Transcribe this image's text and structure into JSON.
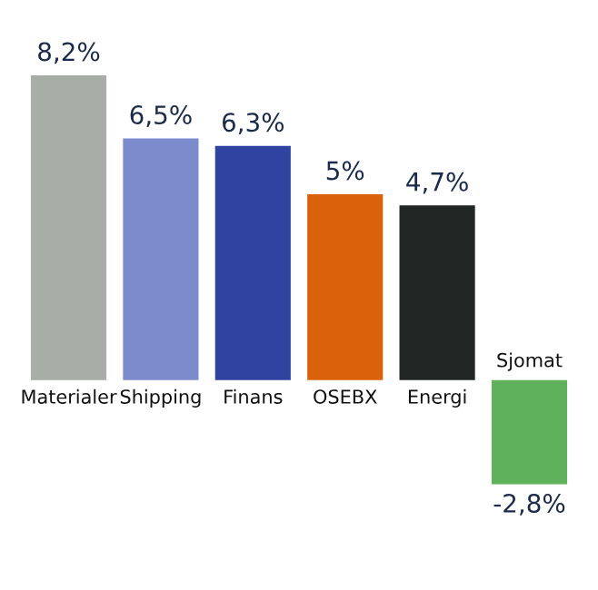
{
  "chart_data": {
    "type": "bar",
    "categories": [
      "Materialer",
      "Shipping",
      "Finans",
      "OSEBX",
      "Energi",
      "Sjomat"
    ],
    "values": [
      8.2,
      6.5,
      6.3,
      5,
      4.7,
      -2.8
    ],
    "colors": [
      "#a6aea5",
      "#7b8bcb",
      "#2f44a0",
      "#d9620a",
      "#222624",
      "#5fb15c"
    ],
    "value_labels": [
      "8,2%",
      "6,5%",
      "6,3%",
      "5%",
      "4,7%",
      "-2,8%"
    ]
  }
}
